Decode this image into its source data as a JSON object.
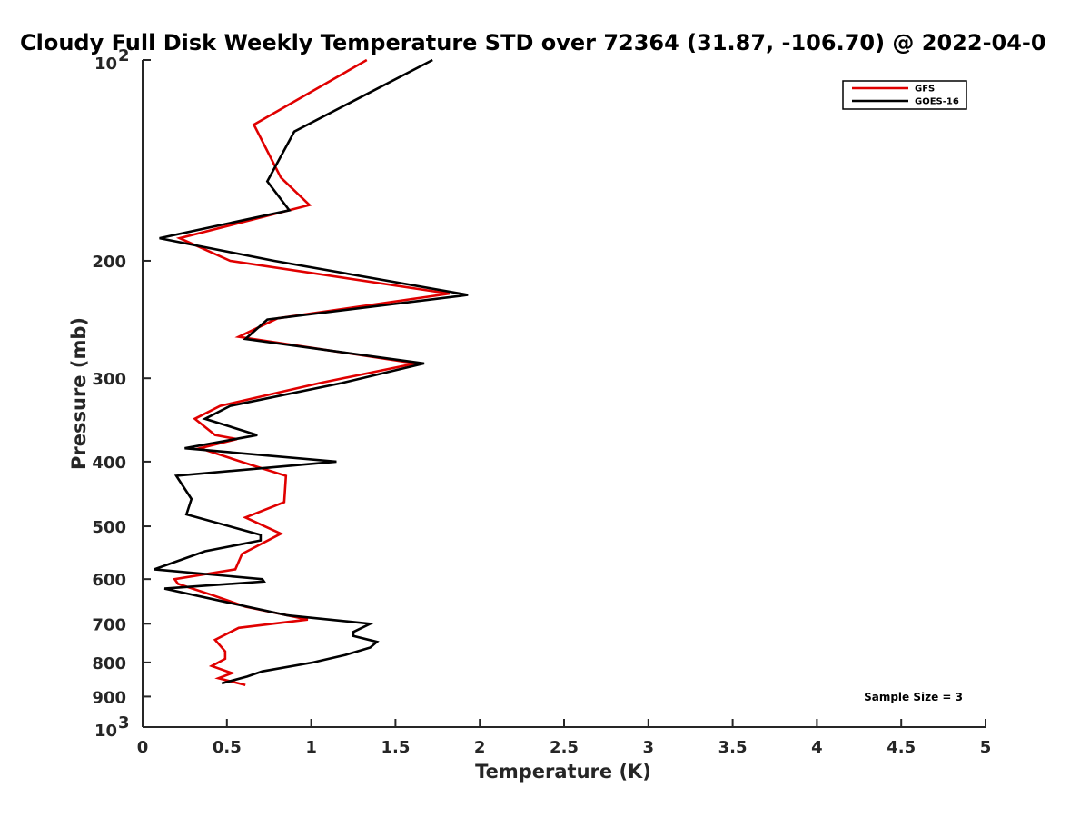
{
  "chart_data": {
    "type": "line",
    "title": "Cloudy Full Disk Weekly Temperature STD over 72364 (31.87, -106.70) @ 2022-04-0",
    "xlabel": "Temperature (K)",
    "ylabel": "Pressure (mb)",
    "xlim": [
      0,
      5
    ],
    "ylim": [
      100,
      1000
    ],
    "y_scale": "log",
    "y_reversed": true,
    "x_ticks": [
      "0",
      "0.5",
      "1",
      "1.5",
      "2",
      "2.5",
      "3",
      "3.5",
      "4",
      "4.5",
      "5"
    ],
    "y_ticks": [
      {
        "value": 100,
        "base": "10",
        "exp": "2"
      },
      {
        "value": 200,
        "label": "200"
      },
      {
        "value": 300,
        "label": "300"
      },
      {
        "value": 400,
        "label": "400"
      },
      {
        "value": 500,
        "label": "500"
      },
      {
        "value": 600,
        "label": "600"
      },
      {
        "value": 700,
        "label": "700"
      },
      {
        "value": 800,
        "label": "800"
      },
      {
        "value": 900,
        "label": "900"
      },
      {
        "value": 1000,
        "base": "10",
        "exp": "3"
      }
    ],
    "legend": {
      "position": "top-right"
    },
    "annotation": "Sample Size = 3",
    "grid": false,
    "series": [
      {
        "name": "GFS",
        "color": "#e00000",
        "points": [
          [
            1.33,
            100
          ],
          [
            0.66,
            125
          ],
          [
            0.82,
            150
          ],
          [
            0.99,
            165
          ],
          [
            0.22,
            185
          ],
          [
            0.52,
            200
          ],
          [
            1.82,
            224
          ],
          [
            0.8,
            244
          ],
          [
            0.57,
            260
          ],
          [
            1.62,
            285
          ],
          [
            1.05,
            305
          ],
          [
            0.46,
            330
          ],
          [
            0.31,
            345
          ],
          [
            0.43,
            365
          ],
          [
            0.56,
            370
          ],
          [
            0.34,
            382
          ],
          [
            0.65,
            405
          ],
          [
            0.85,
            420
          ],
          [
            0.84,
            460
          ],
          [
            0.61,
            485
          ],
          [
            0.82,
            513
          ],
          [
            0.59,
            550
          ],
          [
            0.55,
            580
          ],
          [
            0.19,
            600
          ],
          [
            0.21,
            610
          ],
          [
            0.42,
            635
          ],
          [
            0.61,
            660
          ],
          [
            0.98,
            690
          ],
          [
            0.57,
            710
          ],
          [
            0.43,
            740
          ],
          [
            0.49,
            770
          ],
          [
            0.49,
            790
          ],
          [
            0.41,
            810
          ],
          [
            0.53,
            830
          ],
          [
            0.45,
            845
          ],
          [
            0.61,
            865
          ]
        ]
      },
      {
        "name": "GOES-16",
        "color": "#000000",
        "points": [
          [
            1.72,
            100
          ],
          [
            0.9,
            128
          ],
          [
            0.74,
            152
          ],
          [
            0.87,
            168
          ],
          [
            0.1,
            185
          ],
          [
            0.78,
            200
          ],
          [
            1.93,
            225
          ],
          [
            0.74,
            245
          ],
          [
            0.61,
            262
          ],
          [
            1.67,
            285
          ],
          [
            1.18,
            305
          ],
          [
            0.52,
            330
          ],
          [
            0.37,
            345
          ],
          [
            0.68,
            365
          ],
          [
            0.25,
            382
          ],
          [
            1.15,
            400
          ],
          [
            0.2,
            420
          ],
          [
            0.29,
            455
          ],
          [
            0.26,
            480
          ],
          [
            0.7,
            515
          ],
          [
            0.7,
            525
          ],
          [
            0.37,
            545
          ],
          [
            0.07,
            580
          ],
          [
            0.71,
            600
          ],
          [
            0.72,
            605
          ],
          [
            0.13,
            620
          ],
          [
            0.62,
            660
          ],
          [
            0.86,
            680
          ],
          [
            1.35,
            700
          ],
          [
            1.25,
            720
          ],
          [
            1.25,
            730
          ],
          [
            1.39,
            745
          ],
          [
            1.35,
            760
          ],
          [
            1.2,
            780
          ],
          [
            1.01,
            800
          ],
          [
            0.71,
            825
          ],
          [
            0.62,
            840
          ],
          [
            0.47,
            860
          ]
        ]
      }
    ]
  }
}
